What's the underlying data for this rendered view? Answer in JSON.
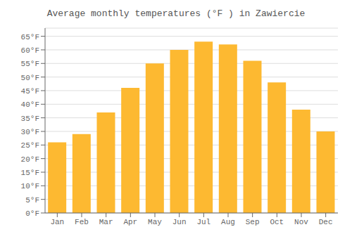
{
  "chart_data": {
    "type": "bar",
    "title": "Average monthly temperatures (°F ) in Zawiercie",
    "categories": [
      "Jan",
      "Feb",
      "Mar",
      "Apr",
      "May",
      "Jun",
      "Jul",
      "Aug",
      "Sep",
      "Oct",
      "Nov",
      "Dec"
    ],
    "values": [
      26,
      29,
      37,
      46,
      55,
      60,
      63,
      62,
      56,
      48,
      38,
      30
    ],
    "color": "#FDB931",
    "ylim": [
      0,
      68
    ],
    "yticks": [
      {
        "value": 0,
        "label": "0°F"
      },
      {
        "value": 5,
        "label": "5°F"
      },
      {
        "value": 10,
        "label": "10°F"
      },
      {
        "value": 15,
        "label": "15°F"
      },
      {
        "value": 20,
        "label": "20°F"
      },
      {
        "value": 25,
        "label": "25°F"
      },
      {
        "value": 30,
        "label": "30°F"
      },
      {
        "value": 35,
        "label": "35°F"
      },
      {
        "value": 40,
        "label": "40°F"
      },
      {
        "value": 45,
        "label": "45°F"
      },
      {
        "value": 50,
        "label": "50°F"
      },
      {
        "value": 55,
        "label": "55°F"
      },
      {
        "value": 60,
        "label": "60°F"
      },
      {
        "value": 65,
        "label": "65°F"
      }
    ],
    "grid": true
  }
}
